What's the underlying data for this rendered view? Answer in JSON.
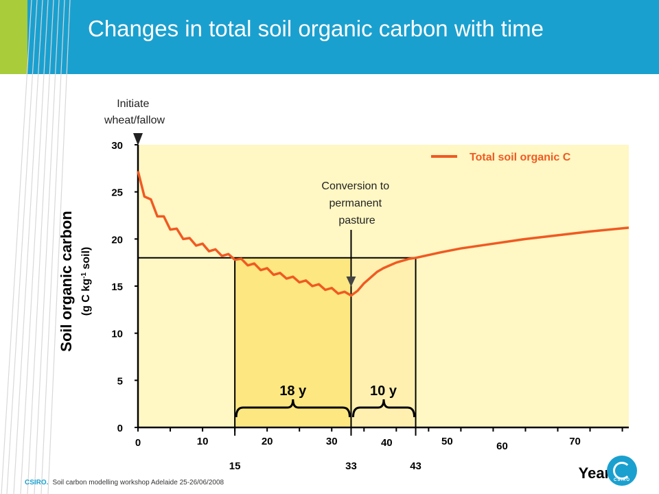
{
  "slide": {
    "title": "Changes in total soil organic carbon with time",
    "footer_brand": "CSIRO.",
    "footer_text": "Soil carbon modelling workshop Adelaide 25-26/06/2008",
    "logo_text": "CSIRO"
  },
  "colors": {
    "header": "#1aa0cf",
    "lime": "#a8cc3a",
    "series": "#f05a22",
    "plot_bg": "#fff7c4",
    "highlight_1": "#fce780",
    "highlight_2": "#fff0b0"
  },
  "chart_data": {
    "type": "line",
    "ylabel": "Soil organic carbon",
    "ylabel_unit": "(g C kg-1 soil)",
    "xlabel": "Years",
    "xlim": [
      0,
      76
    ],
    "ylim": [
      0,
      30
    ],
    "x_ticks": [
      0,
      10,
      20,
      30,
      40,
      50,
      60,
      70
    ],
    "y_ticks": [
      0,
      5,
      10,
      15,
      20,
      25,
      30
    ],
    "extra_x_labels": [
      15,
      33,
      43
    ],
    "legend": {
      "position": "top-right",
      "label": "Total soil organic C"
    },
    "series": [
      {
        "name": "Total soil organic C",
        "x": [
          0,
          1,
          2,
          3,
          4,
          5,
          6,
          7,
          8,
          9,
          10,
          11,
          12,
          13,
          14,
          15,
          16,
          17,
          18,
          19,
          20,
          21,
          22,
          23,
          24,
          25,
          26,
          27,
          28,
          29,
          30,
          31,
          32,
          33,
          34,
          35,
          36,
          37,
          38,
          39,
          40,
          41,
          42,
          43,
          45,
          47,
          50,
          55,
          60,
          65,
          70,
          76
        ],
        "y": [
          27.2,
          24.5,
          24.2,
          22.4,
          22.4,
          21.0,
          21.1,
          20.0,
          20.1,
          19.3,
          19.5,
          18.7,
          18.9,
          18.2,
          18.4,
          17.8,
          17.9,
          17.2,
          17.4,
          16.7,
          16.9,
          16.2,
          16.4,
          15.8,
          16.0,
          15.4,
          15.6,
          15.0,
          15.2,
          14.6,
          14.8,
          14.2,
          14.4,
          14.0,
          14.5,
          15.3,
          15.9,
          16.5,
          16.9,
          17.2,
          17.5,
          17.7,
          17.9,
          18.0,
          18.3,
          18.6,
          19.0,
          19.5,
          20.0,
          20.4,
          20.8,
          21.2
        ]
      }
    ],
    "annotations": {
      "initiate": "Initiate wheat/fallow",
      "initiate_x": 0,
      "conversion": "Conversion to permanent pasture",
      "conversion_x": 33,
      "reference_level": 18,
      "interval_1": {
        "from": 15,
        "to": 33,
        "label": "18 y"
      },
      "interval_2": {
        "from": 33,
        "to": 43,
        "label": "10 y"
      }
    }
  }
}
